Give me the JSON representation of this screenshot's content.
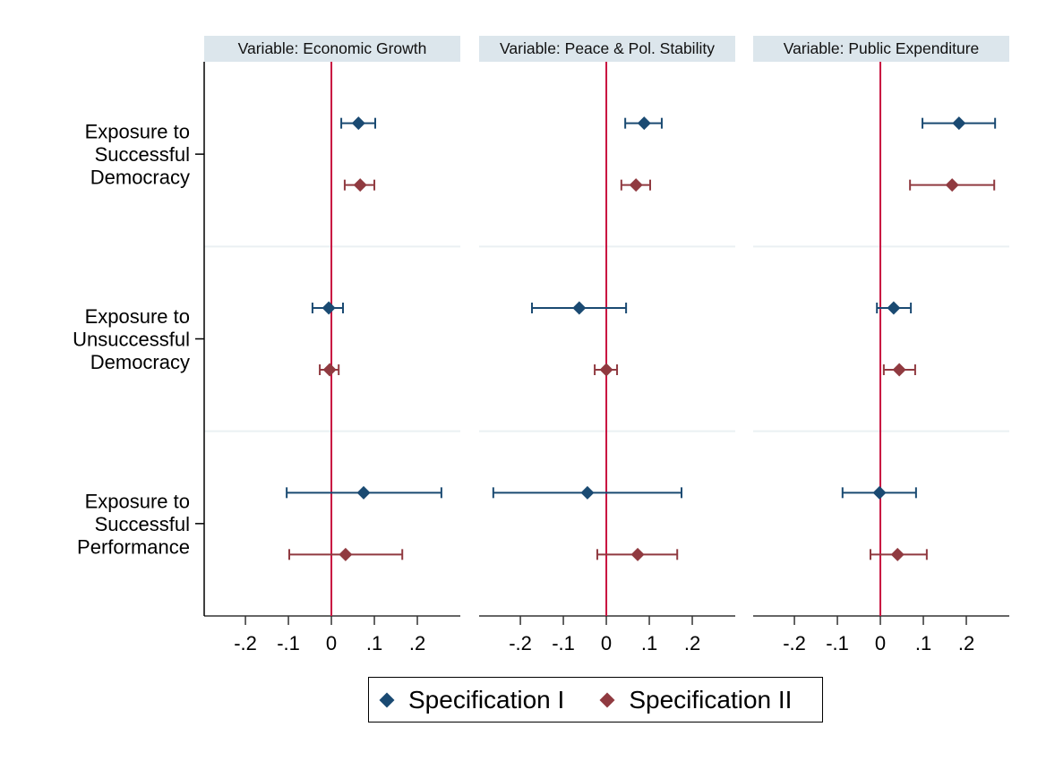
{
  "chart_data": {
    "type": "scatter",
    "subtype": "coefficient-plot-with-confidence-intervals",
    "title": "",
    "xlabel": "",
    "ylabel": "",
    "xlim": [
      -0.296,
      0.3
    ],
    "x_ticks": [
      -0.2,
      -0.1,
      0,
      0.1,
      0.2
    ],
    "x_tick_labels": [
      "-.2",
      "-.1",
      "0",
      ".1",
      ".2"
    ],
    "reference_line_x": 0,
    "grid": false,
    "legend_position": "bottom-center",
    "categories": [
      [
        "Exposure to",
        "Successful",
        "Democracy"
      ],
      [
        "Exposure to",
        "Unsuccessful",
        "Democracy"
      ],
      [
        "Exposure to",
        "Successful",
        "Performance"
      ]
    ],
    "series": [
      {
        "name": "Specification I",
        "color": "#1a4a72"
      },
      {
        "name": "Specification II",
        "color": "#903a40"
      }
    ],
    "panels": [
      {
        "title": "Variable: Economic Growth",
        "estimates": [
          [
            {
              "est": 0.063,
              "lo": 0.023,
              "hi": 0.102
            },
            {
              "est": 0.067,
              "lo": 0.031,
              "hi": 0.1
            }
          ],
          [
            {
              "est": -0.006,
              "lo": -0.044,
              "hi": 0.027
            },
            {
              "est": -0.004,
              "lo": -0.027,
              "hi": 0.017
            }
          ],
          [
            {
              "est": 0.075,
              "lo": -0.104,
              "hi": 0.256
            },
            {
              "est": 0.033,
              "lo": -0.098,
              "hi": 0.165
            }
          ]
        ]
      },
      {
        "title": "Variable: Peace & Pol. Stability",
        "estimates": [
          [
            {
              "est": 0.088,
              "lo": 0.044,
              "hi": 0.129
            },
            {
              "est": 0.069,
              "lo": 0.035,
              "hi": 0.102
            }
          ],
          [
            {
              "est": -0.063,
              "lo": -0.173,
              "hi": 0.046
            },
            {
              "est": 0.0,
              "lo": -0.027,
              "hi": 0.025
            }
          ],
          [
            {
              "est": -0.044,
              "lo": -0.263,
              "hi": 0.175
            },
            {
              "est": 0.073,
              "lo": -0.021,
              "hi": 0.165
            }
          ]
        ]
      },
      {
        "title": "Variable: Public Expenditure",
        "estimates": [
          [
            {
              "est": 0.183,
              "lo": 0.098,
              "hi": 0.267
            },
            {
              "est": 0.167,
              "lo": 0.069,
              "hi": 0.265
            }
          ],
          [
            {
              "est": 0.031,
              "lo": -0.008,
              "hi": 0.071
            },
            {
              "est": 0.044,
              "lo": 0.008,
              "hi": 0.081
            }
          ],
          [
            {
              "est": -0.002,
              "lo": -0.088,
              "hi": 0.083
            },
            {
              "est": 0.04,
              "lo": -0.023,
              "hi": 0.108
            }
          ]
        ]
      }
    ],
    "colors": {
      "reference_line": "#c8103e",
      "panel_header_bg": "#dce6ec",
      "separator": "#eaf0f3",
      "axis": "#000000"
    }
  },
  "legend": {
    "items": [
      {
        "label": "Specification I",
        "color": "#1a4a72"
      },
      {
        "label": "Specification II",
        "color": "#903a40"
      }
    ]
  }
}
